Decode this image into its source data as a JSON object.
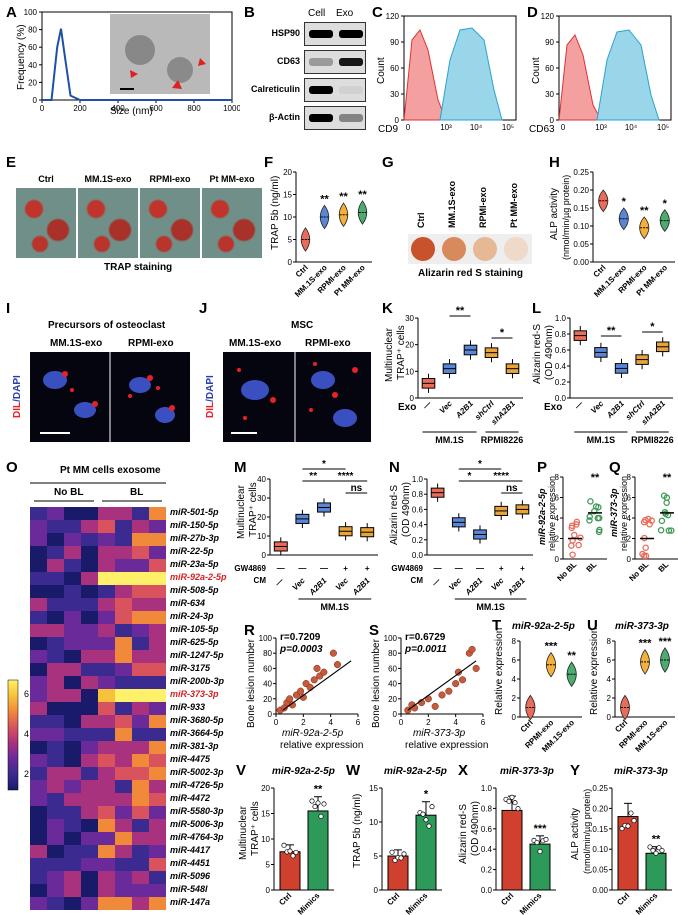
{
  "panels": {
    "A": {
      "letter": "A",
      "ylabel": "Frequency (%)",
      "xlabel": "Size (nm)",
      "yticks": [
        "0",
        "20",
        "40",
        "60",
        "80",
        "100"
      ],
      "xticks": [
        "0",
        "200",
        "400",
        "600",
        "800",
        "1000"
      ],
      "chart_data": {
        "type": "line",
        "x": [
          0,
          50,
          80,
          100,
          120,
          150,
          200,
          1000
        ],
        "y": [
          0,
          0,
          60,
          81,
          50,
          5,
          0,
          0
        ],
        "xlim": [
          0,
          1000
        ],
        "ylim": [
          0,
          100
        ],
        "xlabel": "Size (nm)",
        "ylabel": "Frequency (%)"
      }
    },
    "B": {
      "letter": "B",
      "cols": [
        "Cell",
        "Exo"
      ],
      "rows": [
        "HSP90",
        "CD63",
        "Calreticulin",
        "β-Actin"
      ]
    },
    "C": {
      "letter": "C",
      "ylabel": "Count",
      "xlabel": "CD9",
      "yticks": [
        "0",
        "30",
        "60",
        "90",
        "120"
      ],
      "xticks": [
        "0",
        "10³",
        "10⁴",
        "10⁵"
      ]
    },
    "D": {
      "letter": "D",
      "ylabel": "Count",
      "xlabel": "CD63",
      "yticks": [
        "0",
        "30",
        "60",
        "90",
        "120"
      ],
      "xticks": [
        "0",
        "10³",
        "10⁴",
        "10⁵"
      ]
    },
    "E": {
      "letter": "E",
      "cols": [
        "Ctrl",
        "MM.1S-exo",
        "RPMI-exo",
        "Pt MM-exo"
      ],
      "caption": "TRAP staining"
    },
    "F": {
      "letter": "F",
      "ylabel": "TRAP 5b (ng/ml)",
      "yticks": [
        "0",
        "5",
        "10",
        "15",
        "20"
      ],
      "groups": [
        "Ctrl",
        "MM.1S-exo",
        "RPMI-exo",
        "Pt MM-exo"
      ],
      "sig": [
        "",
        "**",
        "**",
        "**"
      ],
      "chart_data": {
        "type": "violin",
        "categories": [
          "Ctrl",
          "MM.1S-exo",
          "RPMI-exo",
          "Pt MM-exo"
        ],
        "values": [
          5,
          10,
          10.5,
          11
        ],
        "ylim": [
          0,
          20
        ],
        "ylabel": "TRAP 5b (ng/ml)"
      }
    },
    "G": {
      "letter": "G",
      "cols": [
        "Ctrl",
        "MM.1S-exo",
        "RPMI-exo",
        "Pt MM-exo"
      ],
      "caption": "Alizarin red S staining"
    },
    "H": {
      "letter": "H",
      "ylabel1": "ALP activity",
      "ylabel2": "(nmol/min/µg protein)",
      "yticks": [
        "0.00",
        "0.05",
        "0.10",
        "0.15",
        "0.20",
        "0.25"
      ],
      "groups": [
        "Ctrl",
        "MM.1S-exo",
        "RPMI-exo",
        "Pt MM-exo"
      ],
      "sig": [
        "",
        "*",
        "**",
        "*"
      ],
      "chart_data": {
        "type": "violin",
        "categories": [
          "Ctrl",
          "MM.1S-exo",
          "RPMI-exo",
          "Pt MM-exo"
        ],
        "values": [
          0.17,
          0.12,
          0.095,
          0.115
        ],
        "ylim": [
          0,
          0.25
        ]
      }
    },
    "I": {
      "letter": "I",
      "title": "Precursors of osteoclast",
      "cols": [
        "MM.1S-exo",
        "RPMI-exo"
      ],
      "side1": "DIL",
      "side2": "/DAPI"
    },
    "J": {
      "letter": "J",
      "title": "MSC",
      "cols": [
        "MM.1S-exo",
        "RPMI-exo"
      ],
      "side1": "DIL",
      "side2": "/DAPI"
    },
    "K": {
      "letter": "K",
      "ylabel1": "Multinuclear",
      "ylabel2": "TRAP⁺ cells",
      "yticks": [
        "0",
        "10",
        "20",
        "30"
      ],
      "exo": "Exo",
      "xl": [
        "—",
        "Vec",
        "A2B1",
        "shCtrl",
        "shA2B1"
      ],
      "groups": [
        "MM.1S",
        "RPMI8226"
      ],
      "sig": [
        "**",
        "*"
      ],
      "chart_data": {
        "type": "box",
        "categories": [
          "—",
          "Vec",
          "A2B1",
          "shCtrl",
          "shA2B1"
        ],
        "values": [
          5.5,
          11,
          18,
          17,
          11
        ],
        "ylim": [
          0,
          30
        ]
      }
    },
    "L": {
      "letter": "L",
      "ylabel1": "Alizarin red-S",
      "ylabel2": "(OD 490nm)",
      "yticks": [
        "0.0",
        "0.2",
        "0.4",
        "0.6",
        "0.8",
        "1.0"
      ],
      "exo": "Exo",
      "xl": [
        "—",
        "Vec",
        "A2B1",
        "shCtrl",
        "shA2B1"
      ],
      "groups": [
        "MM.1S",
        "RPMI8226"
      ],
      "sig": [
        "**",
        "*"
      ],
      "chart_data": {
        "type": "box",
        "categories": [
          "—",
          "Vec",
          "A2B1",
          "shCtrl",
          "shA2B1"
        ],
        "values": [
          0.78,
          0.57,
          0.37,
          0.48,
          0.64
        ],
        "ylim": [
          0,
          1.0
        ]
      }
    },
    "M": {
      "letter": "M",
      "ylabel1": "Multinuclear",
      "ylabel2": "TRAP⁺ cells",
      "yticks": [
        "0",
        "10",
        "20",
        "30",
        "40"
      ],
      "gw": "GW4869",
      "cm": "CM",
      "gwv": [
        "—",
        "—",
        "—",
        "+",
        "+"
      ],
      "cmv": [
        "—",
        "Vec",
        "A2B1",
        "Vec",
        "A2B1"
      ],
      "group": "MM.1S",
      "sig": [
        "*",
        "**",
        "****",
        "ns"
      ],
      "chart_data": {
        "type": "box",
        "categories": [
          "1",
          "2",
          "3",
          "4",
          "5"
        ],
        "values": [
          4.5,
          19,
          25,
          12.5,
          12
        ],
        "ylim": [
          0,
          40
        ]
      }
    },
    "N": {
      "letter": "N",
      "ylabel1": "Alizarin red-S",
      "ylabel2": "(OD 490nm)",
      "yticks": [
        "0.0",
        "0.2",
        "0.4",
        "0.6",
        "0.8",
        "1.0"
      ],
      "gw": "GW4869",
      "cm": "CM",
      "gwv": [
        "—",
        "—",
        "—",
        "+",
        "+"
      ],
      "cmv": [
        "—",
        "Vec",
        "A2B1",
        "Vec",
        "A2B1"
      ],
      "group": "MM.1S",
      "sig": [
        "*",
        "*",
        "****",
        "ns"
      ],
      "chart_data": {
        "type": "box",
        "categories": [
          "1",
          "2",
          "3",
          "4",
          "5"
        ],
        "values": [
          0.82,
          0.43,
          0.27,
          0.58,
          0.6
        ],
        "ylim": [
          0,
          1.0
        ]
      }
    },
    "O": {
      "letter": "O",
      "title": "Pt MM cells exosome",
      "groups": [
        "No BL",
        "BL"
      ],
      "colorbar": [
        "6",
        "4",
        "2"
      ],
      "rows": [
        "miR-501-5p",
        "miR-150-5p",
        "miR-27b-3p",
        "miR-22-5p",
        "miR-23a-5p",
        "miR-92a-2-5p",
        "miR-508-5p",
        "miR-634",
        "miR-24-3p",
        "miR-105-5p",
        "miR-625-5p",
        "miR-1247-5p",
        "miR-3175",
        "miR-200b-3p",
        "miR-373-3p",
        "miR-933",
        "miR-3680-5p",
        "miR-3664-5p",
        "miR-381-3p",
        "miR-4475",
        "miR-5002-3p",
        "miR-4726-5p",
        "miR-4472",
        "miR-5580-3p",
        "miR-5006-3p",
        "miR-4764-3p",
        "miR-4417",
        "miR-4451",
        "miR-5096",
        "miR-548l",
        "miR-147a"
      ],
      "red_rows": [
        "miR-92a-2-5p",
        "miR-373-3p"
      ]
    },
    "P": {
      "letter": "P",
      "ylabel1": "miR-92a-2-5p",
      "ylabel2": "relative expression",
      "yticks": [
        "0",
        "2",
        "4",
        "6",
        "8"
      ],
      "groups": [
        "No BL",
        "BL"
      ],
      "sig": "**"
    },
    "Q": {
      "letter": "Q",
      "ylabel1": "miR-373-3p",
      "ylabel2": "relative expression",
      "yticks": [
        "0",
        "2",
        "4",
        "6",
        "8"
      ],
      "groups": [
        "No BL",
        "BL"
      ],
      "sig": "**"
    },
    "R": {
      "letter": "R",
      "r": "r=0.7209",
      "p": "p=0.0003",
      "ylabel": "Bone lesion number",
      "xlabel1": "miR-92a-2-5p",
      "xlabel2": "relative expression",
      "xticks": [
        "0",
        "2",
        "4",
        "6"
      ],
      "yticks": [
        "0",
        "20",
        "40",
        "60",
        "80",
        "100"
      ],
      "chart_data": {
        "type": "scatter",
        "x": [
          0.3,
          0.6,
          0.8,
          1.0,
          1.2,
          1.5,
          1.8,
          2.0,
          2.2,
          2.5,
          2.8,
          3.0,
          3.2,
          3.5,
          4.2,
          4.5
        ],
        "y": [
          5,
          8,
          15,
          20,
          12,
          25,
          30,
          22,
          40,
          35,
          45,
          60,
          50,
          55,
          80,
          65
        ],
        "xlim": [
          0,
          6
        ],
        "ylim": [
          0,
          100
        ]
      }
    },
    "S": {
      "letter": "S",
      "r": "r=0.6729",
      "p": "p=0.0011",
      "ylabel": "Bone lesion number",
      "xlabel1": "miR-373-3p",
      "xlabel2": "relative expression",
      "xticks": [
        "0",
        "2",
        "4",
        "6"
      ],
      "yticks": [
        "0",
        "20",
        "40",
        "60",
        "80",
        "100"
      ],
      "chart_data": {
        "type": "scatter",
        "x": [
          0.5,
          0.8,
          1.0,
          1.5,
          2.0,
          2.5,
          3.0,
          3.5,
          4.0,
          4.2,
          4.5,
          5.0,
          5.2,
          5.5
        ],
        "y": [
          5,
          12,
          8,
          15,
          20,
          10,
          25,
          30,
          40,
          55,
          45,
          80,
          85,
          60
        ],
        "xlim": [
          0,
          6
        ],
        "ylim": [
          0,
          100
        ]
      }
    },
    "T": {
      "letter": "T",
      "title": "miR-92a-2-5p",
      "ylabel": "Relative expression",
      "yticks": [
        "0",
        "2",
        "4",
        "6",
        "8"
      ],
      "groups": [
        "Ctrl",
        "RPMI-exo",
        "MM.1S-exo"
      ],
      "sig": [
        "",
        "***",
        "**"
      ],
      "chart_data": {
        "type": "violin",
        "categories": [
          "Ctrl",
          "RPMI-exo",
          "MM.1S-exo"
        ],
        "values": [
          1,
          5.5,
          4.5
        ],
        "ylim": [
          0,
          8
        ]
      }
    },
    "U": {
      "letter": "U",
      "title": "miR-373-3p",
      "ylabel": "Relative expression",
      "yticks": [
        "0",
        "2",
        "4",
        "6",
        "8"
      ],
      "groups": [
        "Ctrl",
        "RPMI-exo",
        "MM.1S-exo"
      ],
      "sig": [
        "",
        "***",
        "***"
      ],
      "chart_data": {
        "type": "violin",
        "categories": [
          "Ctrl",
          "RPMI-exo",
          "MM.1S-exo"
        ],
        "values": [
          1,
          5.8,
          6
        ],
        "ylim": [
          0,
          8
        ]
      }
    },
    "V": {
      "letter": "V",
      "title": "miR-92a-2-5p",
      "ylabel1": "Multinuclear",
      "ylabel2": "TRAP⁺ cells",
      "yticks": [
        "0",
        "5",
        "10",
        "15",
        "20"
      ],
      "groups": [
        "Ctrl",
        "Mimics"
      ],
      "sig": "**",
      "chart_data": {
        "type": "bar",
        "categories": [
          "Ctrl",
          "Mimics"
        ],
        "values": [
          7.5,
          15.5
        ],
        "ylim": [
          0,
          20
        ]
      }
    },
    "W": {
      "letter": "W",
      "title": "miR-92a-2-5p",
      "ylabel": "TRAP 5b (ng/ml)",
      "yticks": [
        "0",
        "5",
        "10",
        "15"
      ],
      "groups": [
        "Ctrl",
        "Mimics"
      ],
      "sig": "*",
      "chart_data": {
        "type": "bar",
        "categories": [
          "Ctrl",
          "Mimics"
        ],
        "values": [
          5,
          11
        ],
        "ylim": [
          0,
          15
        ]
      }
    },
    "X": {
      "letter": "X",
      "title": "miR-373-3p",
      "ylabel1": "Alizarin red-S",
      "ylabel2": "(OD 490nm)",
      "yticks": [
        "0.0",
        "0.2",
        "0.4",
        "0.6",
        "0.8",
        "1.0"
      ],
      "groups": [
        "Ctrl",
        "Mimics"
      ],
      "sig": "***",
      "chart_data": {
        "type": "bar",
        "categories": [
          "Ctrl",
          "Mimics"
        ],
        "values": [
          0.78,
          0.45
        ],
        "ylim": [
          0,
          1.0
        ]
      }
    },
    "Y": {
      "letter": "Y",
      "title": "miR-373-3p",
      "ylabel1": "ALP activity",
      "ylabel2": "(nmol/min/µg protein)",
      "yticks": [
        "0.00",
        "0.05",
        "0.10",
        "0.15",
        "0.20",
        "0.25"
      ],
      "groups": [
        "Ctrl",
        "Mimics"
      ],
      "sig": "**",
      "chart_data": {
        "type": "bar",
        "categories": [
          "Ctrl",
          "Mimics"
        ],
        "values": [
          0.18,
          0.09
        ],
        "ylim": [
          0,
          0.25
        ]
      }
    }
  },
  "colors": {
    "orange": "#F4A53A",
    "blue": "#3E74C9",
    "green": "#2F9D5E",
    "red": "#C0392B",
    "box_orange": "#E8A33A",
    "box_blue": "#3A7BD5"
  }
}
